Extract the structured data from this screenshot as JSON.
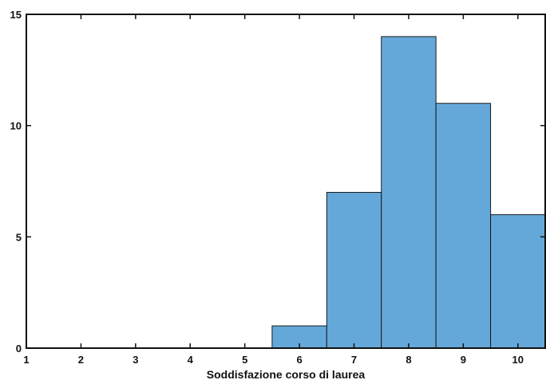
{
  "chart_data": {
    "type": "bar",
    "subtype": "histogram",
    "title": "",
    "xlabel": "Soddisfazione corso di laurea",
    "ylabel": "",
    "xlim": [
      1,
      10.5
    ],
    "ylim": [
      0,
      15
    ],
    "x_ticks": [
      1,
      2,
      3,
      4,
      5,
      6,
      7,
      8,
      9,
      10
    ],
    "y_ticks": [
      0,
      5,
      10,
      15
    ],
    "categories": [
      "6",
      "7",
      "8",
      "9",
      "10"
    ],
    "bin_centers": [
      6,
      7,
      8,
      9,
      10
    ],
    "bin_width": 1,
    "values": [
      1,
      7,
      14,
      11,
      6
    ],
    "bar_color": "#64a8d9",
    "edge_color": "#1a1a1a",
    "grid": false,
    "legend": "none"
  }
}
